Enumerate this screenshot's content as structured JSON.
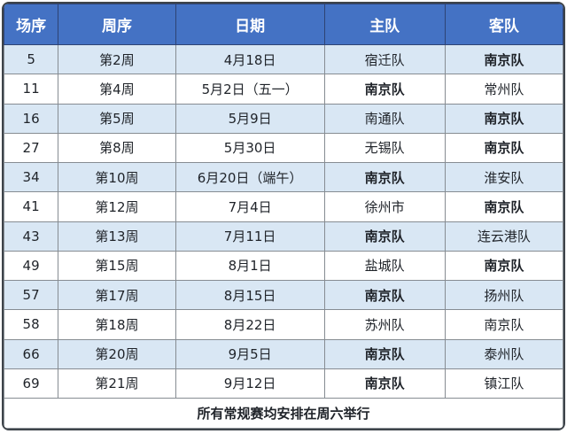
{
  "chart_data": {
    "type": "table",
    "columns": [
      "场序",
      "周序",
      "日期",
      "主队",
      "客队"
    ],
    "rows": [
      {
        "cells": [
          "5",
          "第2周",
          "4月18日",
          "宿迁队",
          "南京队"
        ],
        "bold_col": 4
      },
      {
        "cells": [
          "11",
          "第4周",
          "5月2日（五一）",
          "南京队",
          "常州队"
        ],
        "bold_col": 3
      },
      {
        "cells": [
          "16",
          "第5周",
          "5月9日",
          "南通队",
          "南京队"
        ],
        "bold_col": 4
      },
      {
        "cells": [
          "27",
          "第8周",
          "5月30日",
          "无锡队",
          "南京队"
        ],
        "bold_col": 4
      },
      {
        "cells": [
          "34",
          "第10周",
          "6月20日（端午）",
          "南京队",
          "淮安队"
        ],
        "bold_col": 3
      },
      {
        "cells": [
          "41",
          "第12周",
          "7月4日",
          "徐州市",
          "南京队"
        ],
        "bold_col": 4
      },
      {
        "cells": [
          "43",
          "第13周",
          "7月11日",
          "南京队",
          "连云港队"
        ],
        "bold_col": 3
      },
      {
        "cells": [
          "49",
          "第15周",
          "8月1日",
          "盐城队",
          "南京队"
        ],
        "bold_col": 4
      },
      {
        "cells": [
          "57",
          "第17周",
          "8月15日",
          "南京队",
          "扬州队"
        ],
        "bold_col": 3
      },
      {
        "cells": [
          "58",
          "第18周",
          "8月22日",
          "苏州队",
          "南京队"
        ],
        "bold_col": null
      },
      {
        "cells": [
          "66",
          "第20周",
          "9月5日",
          "南京队",
          "泰州队"
        ],
        "bold_col": 3
      },
      {
        "cells": [
          "69",
          "第21周",
          "9月12日",
          "南京队",
          "镇江队"
        ],
        "bold_col": 3
      }
    ],
    "footer_note": "所有常规赛均安排在周六举行",
    "layout": {
      "stripe_pattern": "odd-rows-shaded",
      "grid": true
    }
  },
  "colors": {
    "header_bg": "#4472C4",
    "header_text": "#FFFFFF",
    "header_border": "#2E4374",
    "row_stripe": "#D9E7F4",
    "row_bg": "#FFFFFF",
    "grid": "#868C92",
    "outer_border": "#3E444A",
    "text": "#1F2329"
  }
}
